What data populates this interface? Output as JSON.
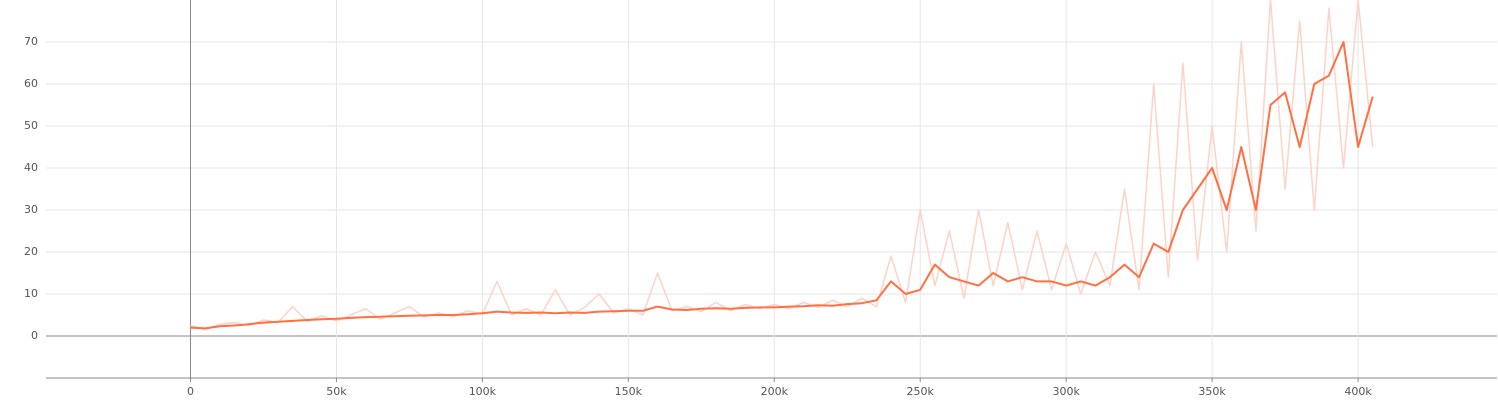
{
  "chart_data": {
    "type": "line",
    "x": [
      0,
      5000,
      10000,
      15000,
      20000,
      25000,
      30000,
      35000,
      40000,
      45000,
      50000,
      55000,
      60000,
      65000,
      70000,
      75000,
      80000,
      85000,
      90000,
      95000,
      100000,
      105000,
      110000,
      115000,
      120000,
      125000,
      130000,
      135000,
      140000,
      145000,
      150000,
      155000,
      160000,
      165000,
      170000,
      175000,
      180000,
      185000,
      190000,
      195000,
      200000,
      205000,
      210000,
      215000,
      220000,
      225000,
      230000,
      235000,
      240000,
      245000,
      250000,
      255000,
      260000,
      265000,
      270000,
      275000,
      280000,
      285000,
      290000,
      295000,
      300000,
      305000,
      310000,
      315000,
      320000,
      325000,
      330000,
      335000,
      340000,
      345000,
      350000,
      355000,
      360000,
      365000,
      370000,
      375000,
      380000,
      385000,
      390000,
      395000,
      400000,
      405000
    ],
    "series": [
      {
        "color": "#fcd3c6",
        "values": [
          2.5,
          1.5,
          2.8,
          3.2,
          2.5,
          3.8,
          3.2,
          7,
          3.5,
          4.8,
          3.6,
          5,
          6.5,
          4,
          5.5,
          7,
          4.5,
          5.5,
          4.6,
          6,
          5.2,
          13,
          5,
          6.5,
          5,
          11,
          5,
          6.8,
          10,
          5.5,
          6.5,
          5,
          15,
          6,
          7,
          5.8,
          8,
          6,
          7.5,
          6.5,
          7.5,
          6.5,
          8,
          6.8,
          8.5,
          7,
          9,
          7,
          19,
          8,
          30,
          12,
          25,
          9,
          30,
          12,
          27,
          11,
          25,
          11,
          22,
          10,
          20,
          12,
          35,
          11,
          60,
          14,
          65,
          18,
          50,
          20,
          70,
          25,
          80,
          35,
          75,
          30,
          78,
          40,
          80,
          45
        ]
      },
      {
        "color": "#ff7043",
        "values": [
          2,
          1.8,
          2.3,
          2.5,
          2.8,
          3.2,
          3.4,
          3.6,
          3.8,
          4,
          4.1,
          4.3,
          4.5,
          4.6,
          4.7,
          4.8,
          4.9,
          5,
          5,
          5.2,
          5.4,
          5.8,
          5.6,
          5.5,
          5.6,
          5.4,
          5.6,
          5.5,
          5.8,
          5.9,
          6,
          6,
          7,
          6.3,
          6.2,
          6.5,
          6.6,
          6.5,
          6.7,
          6.8,
          6.8,
          7,
          7.1,
          7.3,
          7.2,
          7.6,
          7.8,
          8.5,
          13,
          10,
          11,
          17,
          14,
          13,
          12,
          15,
          13,
          14,
          13,
          13,
          12,
          13,
          12,
          14,
          17,
          14,
          22,
          20,
          30,
          35,
          40,
          30,
          45,
          30,
          55,
          58,
          45,
          60,
          62,
          70,
          45,
          57
        ]
      }
    ],
    "xlim": [
      -49500,
      447600
    ],
    "ylim": [
      -10,
      80
    ],
    "xticks": [
      0,
      {
        "value": 50000,
        "label": "50k"
      },
      {
        "value": 100000,
        "label": "100k"
      },
      {
        "value": 150000,
        "label": "150k"
      },
      {
        "value": 200000,
        "label": "200k"
      },
      {
        "value": 250000,
        "label": "250k"
      },
      {
        "value": 300000,
        "label": "300k"
      },
      {
        "value": 350000,
        "label": "350k"
      },
      {
        "value": 400000,
        "label": "400k"
      }
    ],
    "yticks": [
      0,
      10,
      20,
      30,
      40,
      50,
      60,
      70
    ],
    "grid": true
  }
}
